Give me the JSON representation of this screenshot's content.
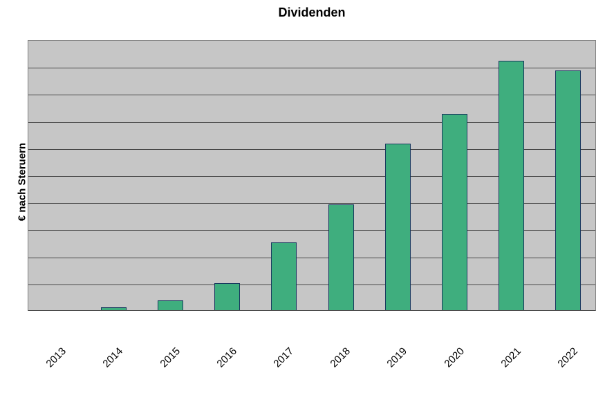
{
  "chart_data": {
    "type": "bar",
    "title": "Dividenden",
    "xlabel": "",
    "ylabel": "€ nach Steruern",
    "categories": [
      "2013",
      "2014",
      "2015",
      "2016",
      "2017",
      "2018",
      "2019",
      "2020",
      "2021",
      "2022"
    ],
    "values": [
      0,
      0.1,
      0.35,
      1.0,
      2.5,
      3.9,
      6.15,
      7.25,
      9.2,
      8.85
    ],
    "ylim": [
      0,
      10
    ],
    "grid_step": 1,
    "grid": true,
    "legend": false,
    "y_tick_labels_visible": false,
    "note": "No numeric y-axis tick labels are shown in the chart; values are relative to 10 equal gridline bands.",
    "colors": {
      "bar_fill": "#3fae7e",
      "bar_border": "#17375e",
      "plot_bg": "#c6c6c6",
      "gridline": "#474747",
      "plot_border": "#808080",
      "text": "#000000"
    }
  }
}
